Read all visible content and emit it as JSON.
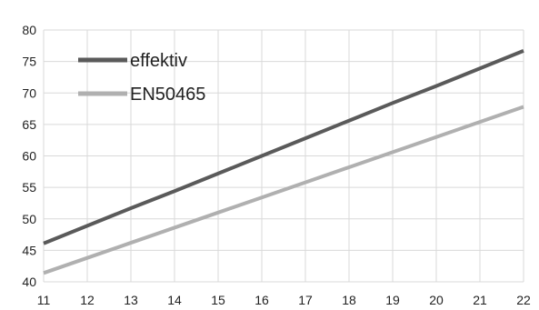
{
  "chart_data": {
    "type": "line",
    "title": "",
    "xlabel": "",
    "ylabel": "",
    "x": [
      11,
      12,
      13,
      14,
      15,
      16,
      17,
      18,
      19,
      20,
      21,
      22
    ],
    "xlim": [
      11,
      22
    ],
    "ylim": [
      40,
      80
    ],
    "x_ticks": [
      "11",
      "12",
      "13",
      "14",
      "15",
      "16",
      "17",
      "18",
      "19",
      "20",
      "21",
      "22"
    ],
    "y_ticks": [
      "40",
      "45",
      "50",
      "55",
      "60",
      "65",
      "70",
      "75",
      "80"
    ],
    "grid": true,
    "legend_position": "top-left",
    "series": [
      {
        "name": "effektiv",
        "color": "#5a5a5a",
        "values": [
          46.1,
          48.9,
          51.7,
          54.4,
          57.2,
          60.0,
          62.8,
          65.6,
          68.4,
          71.1,
          73.9,
          76.7
        ]
      },
      {
        "name": "EN50465",
        "color": "#b0b0b0",
        "values": [
          41.4,
          43.8,
          46.2,
          48.6,
          51.0,
          53.4,
          55.8,
          58.2,
          60.6,
          63.0,
          65.4,
          67.8
        ]
      }
    ]
  }
}
